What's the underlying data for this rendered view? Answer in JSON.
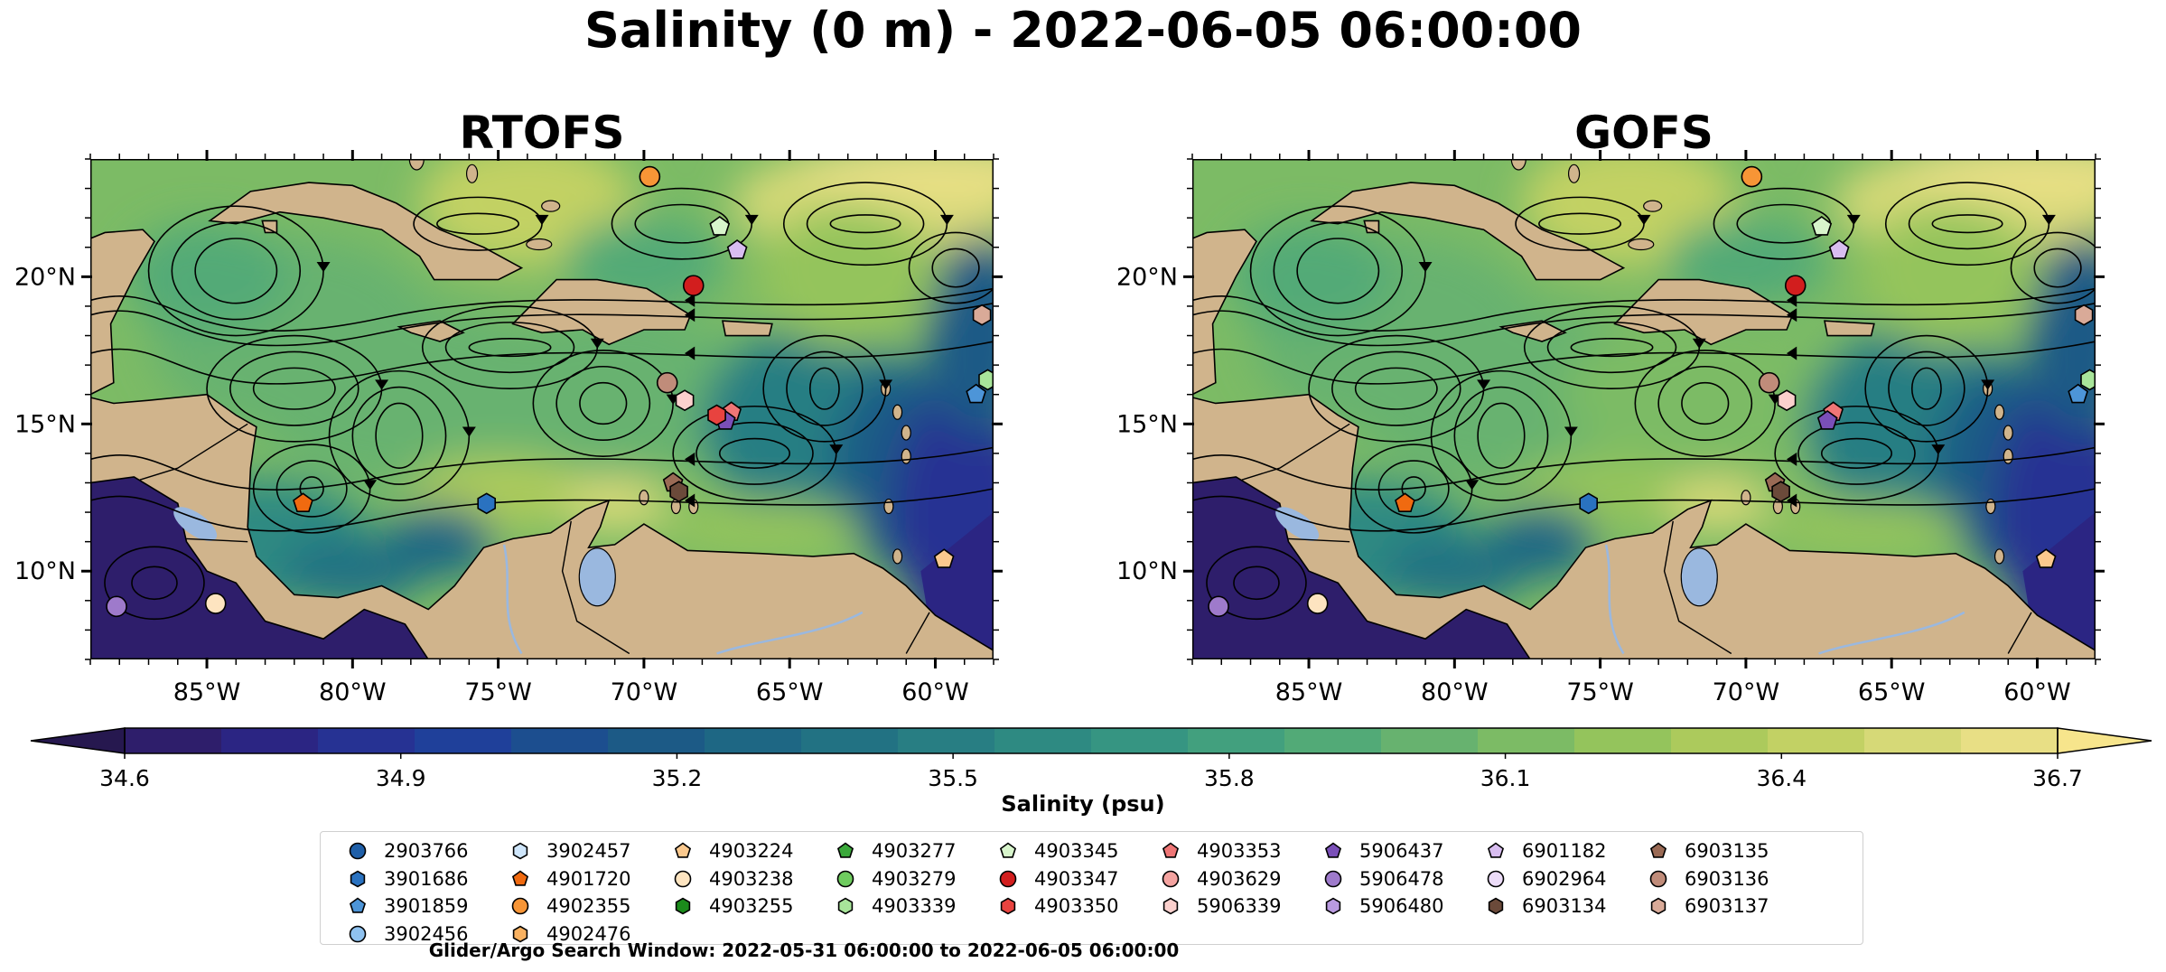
{
  "figure": {
    "title": "Salinity (0 m) - 2022-06-05 06:00:00",
    "footer": "Glider/Argo Search Window: 2022-05-31 06:00:00 to 2022-06-05 06:00:00"
  },
  "chart_data": [
    {
      "type": "heatmap",
      "title": "RTOFS",
      "xlim": [
        -89,
        -58
      ],
      "ylim": [
        7,
        24
      ],
      "xticks": [
        "85°W",
        "80°W",
        "75°W",
        "70°W",
        "65°W",
        "60°W"
      ],
      "xtick_values": [
        -85,
        -80,
        -75,
        -70,
        -65,
        -60
      ],
      "yticks": [
        "10°N",
        "15°N",
        "20°N"
      ],
      "ytick_values": [
        10,
        15,
        20
      ],
      "field": "sea surface salinity with surface current streamlines",
      "floats": [
        {
          "id": "4902355",
          "lon": -69.8,
          "lat": 23.4
        },
        {
          "id": "4903345",
          "lon": -67.4,
          "lat": 21.7
        },
        {
          "id": "6901182",
          "lon": -66.8,
          "lat": 20.9
        },
        {
          "id": "4903347",
          "lon": -68.3,
          "lat": 19.7
        },
        {
          "id": "6903137",
          "lon": -58.4,
          "lat": 18.7
        },
        {
          "id": "4903339",
          "lon": -58.2,
          "lat": 16.5
        },
        {
          "id": "3901859",
          "lon": -58.6,
          "lat": 16.0
        },
        {
          "id": "6903136",
          "lon": -69.2,
          "lat": 16.4
        },
        {
          "id": "5906339",
          "lon": -68.6,
          "lat": 15.8
        },
        {
          "id": "4903353",
          "lon": -67.0,
          "lat": 15.4
        },
        {
          "id": "5906437",
          "lon": -67.2,
          "lat": 15.1
        },
        {
          "id": "4903350",
          "lon": -67.5,
          "lat": 15.3
        },
        {
          "id": "6903135",
          "lon": -69.0,
          "lat": 13.0
        },
        {
          "id": "6903134",
          "lon": -68.8,
          "lat": 12.7
        },
        {
          "id": "4901720",
          "lon": -81.7,
          "lat": 12.3
        },
        {
          "id": "3901686",
          "lon": -75.4,
          "lat": 12.3
        },
        {
          "id": "4903224",
          "lon": -59.7,
          "lat": 10.4
        },
        {
          "id": "5906478",
          "lon": -88.1,
          "lat": 8.8
        },
        {
          "id": "4903238",
          "lon": -84.7,
          "lat": 8.9
        }
      ]
    },
    {
      "type": "heatmap",
      "title": "GOFS",
      "xlim": [
        -89,
        -58
      ],
      "ylim": [
        7,
        24
      ],
      "xticks": [
        "85°W",
        "80°W",
        "75°W",
        "70°W",
        "65°W",
        "60°W"
      ],
      "xtick_values": [
        -85,
        -80,
        -75,
        -70,
        -65,
        -60
      ],
      "yticks": [
        "10°N",
        "15°N",
        "20°N"
      ],
      "ytick_values": [
        10,
        15,
        20
      ],
      "field": "sea surface salinity with surface current streamlines",
      "floats": [
        {
          "id": "4902355",
          "lon": -69.8,
          "lat": 23.4
        },
        {
          "id": "4903345",
          "lon": -67.4,
          "lat": 21.7
        },
        {
          "id": "6901182",
          "lon": -66.8,
          "lat": 20.9
        },
        {
          "id": "4903347",
          "lon": -68.3,
          "lat": 19.7
        },
        {
          "id": "6903137",
          "lon": -58.4,
          "lat": 18.7
        },
        {
          "id": "4903339",
          "lon": -58.2,
          "lat": 16.5
        },
        {
          "id": "3901859",
          "lon": -58.6,
          "lat": 16.0
        },
        {
          "id": "6903136",
          "lon": -69.2,
          "lat": 16.4
        },
        {
          "id": "5906339",
          "lon": -68.6,
          "lat": 15.8
        },
        {
          "id": "4903353",
          "lon": -67.0,
          "lat": 15.4
        },
        {
          "id": "5906437",
          "lon": -67.2,
          "lat": 15.1
        },
        {
          "id": "6903135",
          "lon": -69.0,
          "lat": 13.0
        },
        {
          "id": "6903134",
          "lon": -68.8,
          "lat": 12.7
        },
        {
          "id": "4901720",
          "lon": -81.7,
          "lat": 12.3
        },
        {
          "id": "3901686",
          "lon": -75.4,
          "lat": 12.3
        },
        {
          "id": "4903224",
          "lon": -59.7,
          "lat": 10.4
        },
        {
          "id": "5906478",
          "lon": -88.1,
          "lat": 8.8
        },
        {
          "id": "4903238",
          "lon": -84.7,
          "lat": 8.9
        }
      ]
    }
  ],
  "colorbar": {
    "label": "Salinity (psu)",
    "min": 34.6,
    "max": 36.7,
    "tick_labels": [
      "34.6",
      "34.9",
      "35.2",
      "35.5",
      "35.8",
      "36.1",
      "36.4",
      "36.7"
    ],
    "tick_values": [
      34.6,
      34.9,
      35.2,
      35.5,
      35.8,
      36.1,
      36.4,
      36.7
    ],
    "colors": [
      "#2e1e6b",
      "#2b2583",
      "#263293",
      "#1f409a",
      "#1c4e8f",
      "#1c5a86",
      "#1e6784",
      "#227283",
      "#287e83",
      "#2e8a82",
      "#369582",
      "#42a07e",
      "#52aa77",
      "#67b26f",
      "#7cbb65",
      "#94c45c",
      "#acca5c",
      "#c2d164",
      "#d6d977",
      "#e8df85"
    ],
    "under_color": "#26184f",
    "over_color": "#f7e58c"
  },
  "legend": {
    "items": [
      {
        "id": "2903766",
        "marker": "circle",
        "color": "#1f5fa8"
      },
      {
        "id": "3901686",
        "marker": "hexagon",
        "color": "#2a72c0"
      },
      {
        "id": "3901859",
        "marker": "pentagon",
        "color": "#4d95d8"
      },
      {
        "id": "3902456",
        "marker": "circle",
        "color": "#8fc2f0"
      },
      {
        "id": "3902457",
        "marker": "hexagon",
        "color": "#cfe6fb"
      },
      {
        "id": "4901720",
        "marker": "pentagon",
        "color": "#f06a10"
      },
      {
        "id": "4902355",
        "marker": "circle",
        "color": "#f79536"
      },
      {
        "id": "4902476",
        "marker": "hexagon",
        "color": "#f9b160"
      },
      {
        "id": "4903224",
        "marker": "pentagon",
        "color": "#fbc98e"
      },
      {
        "id": "4903238",
        "marker": "circle",
        "color": "#fde4c0"
      },
      {
        "id": "4903255",
        "marker": "hexagon",
        "color": "#1b8b1b"
      },
      {
        "id": "4903277",
        "marker": "pentagon",
        "color": "#3aa83a"
      },
      {
        "id": "4903279",
        "marker": "circle",
        "color": "#6fcc5f"
      },
      {
        "id": "4903339",
        "marker": "hexagon",
        "color": "#a8e59a"
      },
      {
        "id": "4903345",
        "marker": "pentagon",
        "color": "#d8f5cc"
      },
      {
        "id": "4903347",
        "marker": "circle",
        "color": "#d21e1e"
      },
      {
        "id": "4903350",
        "marker": "hexagon",
        "color": "#e8433f"
      },
      {
        "id": "4903353",
        "marker": "pentagon",
        "color": "#ef7676"
      },
      {
        "id": "4903629",
        "marker": "circle",
        "color": "#f4a3a0"
      },
      {
        "id": "5906339",
        "marker": "hexagon",
        "color": "#fbd0cd"
      },
      {
        "id": "5906437",
        "marker": "pentagon",
        "color": "#7a4fb8"
      },
      {
        "id": "5906478",
        "marker": "circle",
        "color": "#9e7acb"
      },
      {
        "id": "5906480",
        "marker": "hexagon",
        "color": "#b99ae0"
      },
      {
        "id": "6901182",
        "marker": "pentagon",
        "color": "#d8bdf0"
      },
      {
        "id": "6902964",
        "marker": "circle",
        "color": "#ecdcf8"
      },
      {
        "id": "6903134",
        "marker": "hexagon",
        "color": "#6b4a3a"
      },
      {
        "id": "6903135",
        "marker": "pentagon",
        "color": "#9a6a55"
      },
      {
        "id": "6903136",
        "marker": "circle",
        "color": "#c08c7a"
      },
      {
        "id": "6903137",
        "marker": "hexagon",
        "color": "#d9aa98"
      }
    ]
  },
  "colors": {
    "land": "#d0b48c",
    "lakes": "#9ab8df",
    "streamline": "#000000"
  }
}
